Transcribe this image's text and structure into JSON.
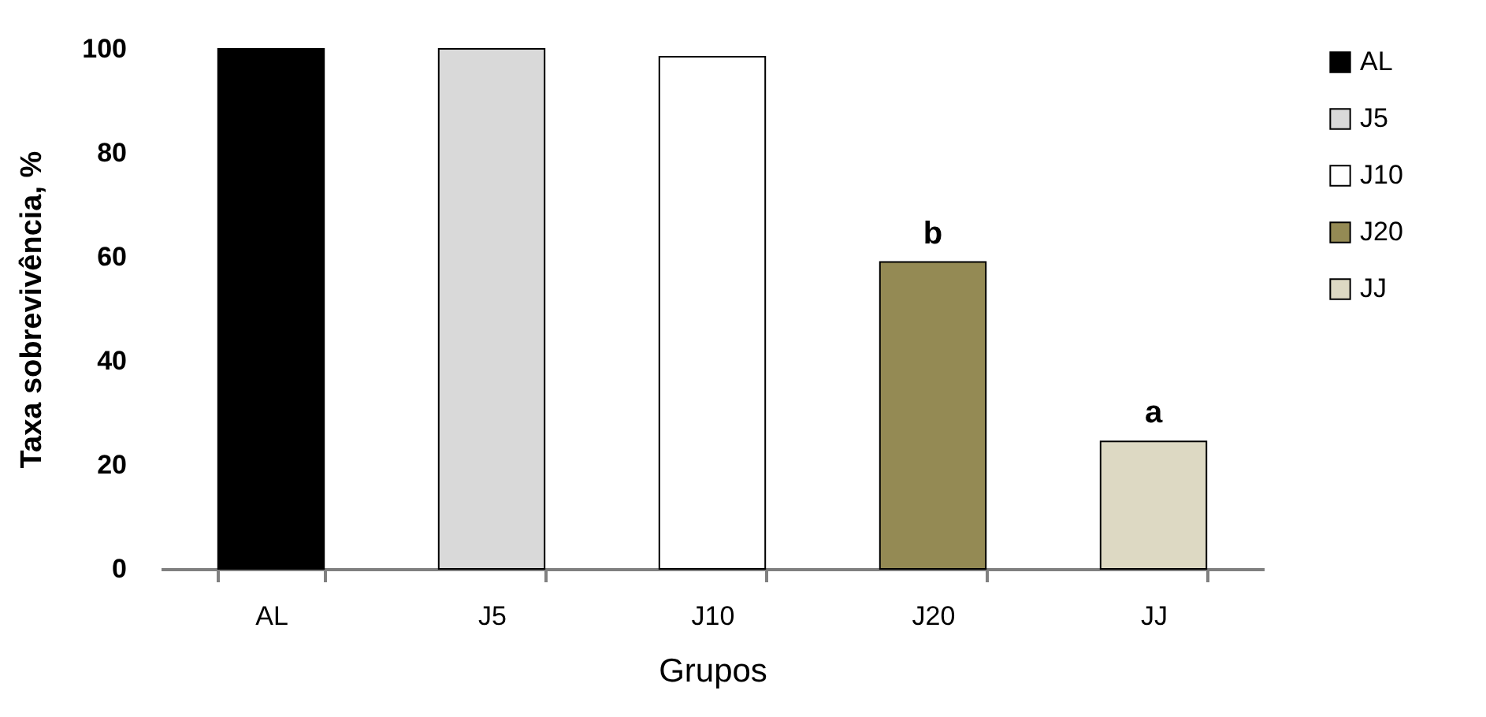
{
  "chart_data": {
    "type": "bar",
    "xlabel": "Grupos",
    "ylabel": "Taxa sobrevivência, %",
    "categories": [
      "AL",
      "J5",
      "J10",
      "J20",
      "JJ"
    ],
    "series": [
      {
        "name": "AL",
        "color": "#000000",
        "values": [
          100,
          null,
          null,
          null,
          null
        ]
      },
      {
        "name": "J5",
        "color": "#d9d9d9",
        "values": [
          null,
          100,
          null,
          null,
          null
        ]
      },
      {
        "name": "J10",
        "color": "#ffffff",
        "values": [
          null,
          null,
          98.5,
          null,
          null
        ]
      },
      {
        "name": "J20",
        "color": "#948a54",
        "values": [
          null,
          null,
          null,
          59,
          null
        ]
      },
      {
        "name": "JJ",
        "color": "#ddd9c3",
        "values": [
          null,
          null,
          null,
          null,
          24.5
        ]
      }
    ],
    "ylim": [
      0,
      100
    ],
    "yticks": [
      0,
      20,
      40,
      60,
      80,
      100
    ],
    "grid": false,
    "legend": "right",
    "annotations": [
      {
        "text": "b",
        "x": "J20",
        "y": 59
      },
      {
        "text": "a",
        "x": "JJ",
        "y": 24.5
      }
    ]
  }
}
